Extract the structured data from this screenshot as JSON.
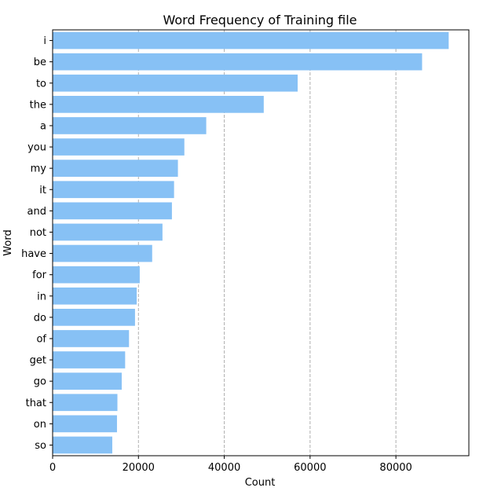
{
  "chart_data": {
    "type": "bar",
    "orientation": "horizontal",
    "title": "Word Frequency of Training file",
    "xlabel": "Count",
    "ylabel": "Word",
    "categories": [
      "i",
      "be",
      "to",
      "the",
      "a",
      "you",
      "my",
      "it",
      "and",
      "not",
      "have",
      "for",
      "in",
      "do",
      "of",
      "get",
      "go",
      "that",
      "on",
      "so"
    ],
    "values": [
      92300,
      86100,
      57100,
      49200,
      35800,
      30700,
      29200,
      28300,
      27800,
      25600,
      23200,
      20300,
      19600,
      19200,
      17800,
      16900,
      16100,
      15100,
      15000,
      13900
    ],
    "xlim": [
      0,
      97000
    ],
    "xticks": [
      0,
      20000,
      40000,
      60000,
      80000
    ],
    "xtick_labels": [
      "0",
      "20000",
      "40000",
      "60000",
      "80000"
    ],
    "bar_color": "#87c1f5",
    "grid": "x-axis dashed vertical lines",
    "legend": "none"
  }
}
